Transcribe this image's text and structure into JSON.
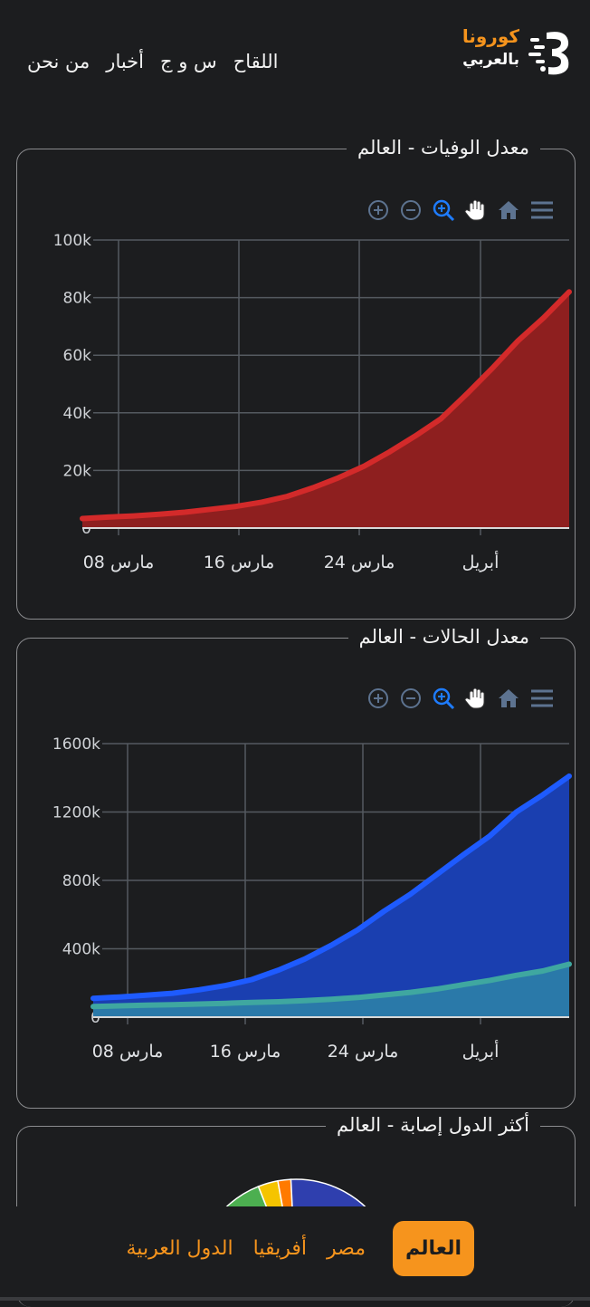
{
  "nav": {
    "items": [
      "اللقاح",
      "س و ج",
      "أخبار",
      "من نحن"
    ]
  },
  "logo": {
    "line1": "كورونا",
    "line2": "بالعربي"
  },
  "colors": {
    "accent": "#f6941d",
    "deaths": "#d32a2a",
    "cases": "#1e5bff",
    "recovered": "#3fa7a0"
  },
  "toolbar_icons": [
    "zoom-in-icon",
    "zoom-out-icon",
    "magnify-icon",
    "pan-hand-icon",
    "home-icon",
    "menu-icon"
  ],
  "deaths_card": {
    "title": "معدل الوفيات - العالم",
    "chart_data": {
      "type": "area",
      "title": "",
      "x_ticks": [
        "مارس 08",
        "مارس 16",
        "مارس 24",
        "أبريل"
      ],
      "y_ticks": [
        "0",
        "20k",
        "40k",
        "60k",
        "80k",
        "100k"
      ],
      "ylim": [
        0,
        100000
      ],
      "grid": true,
      "series": [
        {
          "values": [
            3300,
            3800,
            4200,
            4800,
            5500,
            6500,
            7500,
            9000,
            11000,
            14000,
            17500,
            21500,
            26500,
            32000,
            38000,
            46500,
            55500,
            65000,
            73000,
            82000
          ]
        }
      ]
    }
  },
  "cases_card": {
    "title": "معدل الحالات - العالم",
    "chart_data": {
      "type": "area",
      "title": "",
      "x_ticks": [
        "مارس 08",
        "مارس 16",
        "مارس 24",
        "أبريل"
      ],
      "y_ticks": [
        "0",
        "400k",
        "800k",
        "1200k",
        "1600k"
      ],
      "ylim": [
        0,
        1600000
      ],
      "grid": true,
      "series": [
        {
          "values": [
            110000,
            118000,
            128000,
            140000,
            160000,
            185000,
            220000,
            275000,
            340000,
            420000,
            510000,
            620000,
            720000,
            835000,
            950000,
            1060000,
            1200000,
            1300000,
            1410000
          ]
        },
        {
          "values": [
            62000,
            66000,
            70000,
            73000,
            77000,
            81000,
            86000,
            90000,
            97000,
            105000,
            115000,
            130000,
            145000,
            165000,
            190000,
            215000,
            245000,
            270000,
            310000
          ]
        }
      ]
    }
  },
  "top_countries_card": {
    "title": "أكثر الدول إصابة - العالم",
    "chart_data": {
      "type": "pie",
      "title": "",
      "colors": [
        "#4caf50",
        "#f5c400",
        "#ff7a00",
        "#2f3fae"
      ]
    }
  },
  "bottom_tabs": {
    "items": [
      "العالم",
      "مصر",
      "أفريقيا",
      "الدول العربية"
    ],
    "active": "العالم"
  }
}
